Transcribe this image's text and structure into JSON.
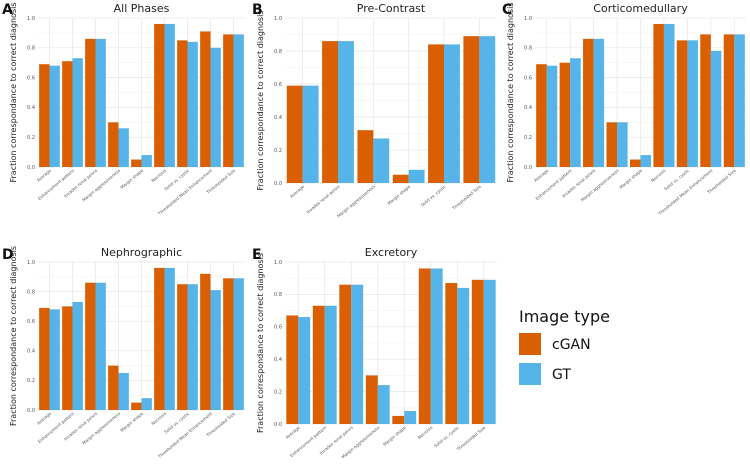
{
  "colors": {
    "cGAN": "#d95f02",
    "GT": "#56b4e9"
  },
  "legend": {
    "title": "Image type",
    "items": [
      "cGAN",
      "GT"
    ]
  },
  "chart_data": [
    {
      "panel": "A",
      "title": "All Phases",
      "type": "bar",
      "ylabel": "Fraction correspondance to correct diagnosis",
      "ylim": [
        0,
        1.0
      ],
      "yticks": [
        "0.0",
        "0.2",
        "0.4",
        "0.6",
        "0.8",
        "1.0"
      ],
      "categories": [
        "Average",
        "Enhancement pattern",
        "Invades renal pelvis",
        "Margin aggressiveness",
        "Margin shape",
        "Necrosis",
        "Solid vs. cystic",
        "Thresholded Mean Enhancement",
        "Thresholded Size"
      ],
      "series": [
        {
          "name": "cGAN",
          "values": [
            0.69,
            0.71,
            0.86,
            0.3,
            0.05,
            0.96,
            0.85,
            0.91,
            0.89
          ]
        },
        {
          "name": "GT",
          "values": [
            0.68,
            0.73,
            0.86,
            0.26,
            0.08,
            0.96,
            0.84,
            0.8,
            0.89
          ]
        }
      ]
    },
    {
      "panel": "B",
      "title": "Pre-Contrast",
      "type": "bar",
      "ylabel": "Fraction correspondance to correct diagnosis",
      "ylim": [
        0,
        1.0
      ],
      "yticks": [
        "0.0",
        "0.2",
        "0.4",
        "0.6",
        "0.8",
        "1.0"
      ],
      "categories": [
        "Average",
        "Invades renal pelvis",
        "Margin aggressiveness",
        "Margin shape",
        "Solid vs. cystic",
        "Thresholded Size"
      ],
      "series": [
        {
          "name": "cGAN",
          "values": [
            0.59,
            0.86,
            0.32,
            0.05,
            0.84,
            0.89
          ]
        },
        {
          "name": "GT",
          "values": [
            0.59,
            0.86,
            0.27,
            0.08,
            0.84,
            0.89
          ]
        }
      ]
    },
    {
      "panel": "C",
      "title": "Corticomedullary",
      "type": "bar",
      "ylabel": "Fraction correspondance to correct diagnosis",
      "ylim": [
        0,
        1.0
      ],
      "yticks": [
        "0.0",
        "0.2",
        "0.4",
        "0.6",
        "0.8",
        "1.0"
      ],
      "categories": [
        "Average",
        "Enhancement pattern",
        "Invades renal pelvis",
        "Margin aggressiveness",
        "Margin shape",
        "Necrosis",
        "Solid vs. cystic",
        "Thresholded Mean Enhancement",
        "Thresholded Size"
      ],
      "series": [
        {
          "name": "cGAN",
          "values": [
            0.69,
            0.7,
            0.86,
            0.3,
            0.05,
            0.96,
            0.85,
            0.89,
            0.89
          ]
        },
        {
          "name": "GT",
          "values": [
            0.68,
            0.73,
            0.86,
            0.3,
            0.08,
            0.96,
            0.85,
            0.78,
            0.89
          ]
        }
      ]
    },
    {
      "panel": "D",
      "title": "Nephrographic",
      "type": "bar",
      "ylabel": "Fraction correspondance to correct diagnosis",
      "ylim": [
        0,
        1.0
      ],
      "yticks": [
        "0.0",
        "0.2",
        "0.4",
        "0.6",
        "0.8",
        "1.0"
      ],
      "categories": [
        "Average",
        "Enhancement pattern",
        "Invades renal pelvis",
        "Margin aggressiveness",
        "Margin shape",
        "Necrosis",
        "Solid vs. cystic",
        "Thresholded Mean Enhancement",
        "Thresholded Size"
      ],
      "series": [
        {
          "name": "cGAN",
          "values": [
            0.69,
            0.7,
            0.86,
            0.3,
            0.05,
            0.96,
            0.85,
            0.92,
            0.89
          ]
        },
        {
          "name": "GT",
          "values": [
            0.68,
            0.73,
            0.86,
            0.25,
            0.08,
            0.96,
            0.85,
            0.81,
            0.89
          ]
        }
      ]
    },
    {
      "panel": "E",
      "title": "Excretory",
      "type": "bar",
      "ylabel": "Fraction correspondance to correct diagnosis",
      "ylim": [
        0,
        1.0
      ],
      "yticks": [
        "0.0",
        "0.2",
        "0.4",
        "0.6",
        "0.8",
        "1.0"
      ],
      "categories": [
        "Average",
        "Enhancement pattern",
        "Invades renal pelvis",
        "Margin aggressiveness",
        "Margin shape",
        "Necrosis",
        "Solid vs. cystic",
        "Thresholded Size"
      ],
      "series": [
        {
          "name": "cGAN",
          "values": [
            0.67,
            0.73,
            0.86,
            0.3,
            0.05,
            0.96,
            0.87,
            0.89
          ]
        },
        {
          "name": "GT",
          "values": [
            0.66,
            0.73,
            0.86,
            0.24,
            0.08,
            0.96,
            0.84,
            0.89
          ]
        }
      ]
    }
  ]
}
